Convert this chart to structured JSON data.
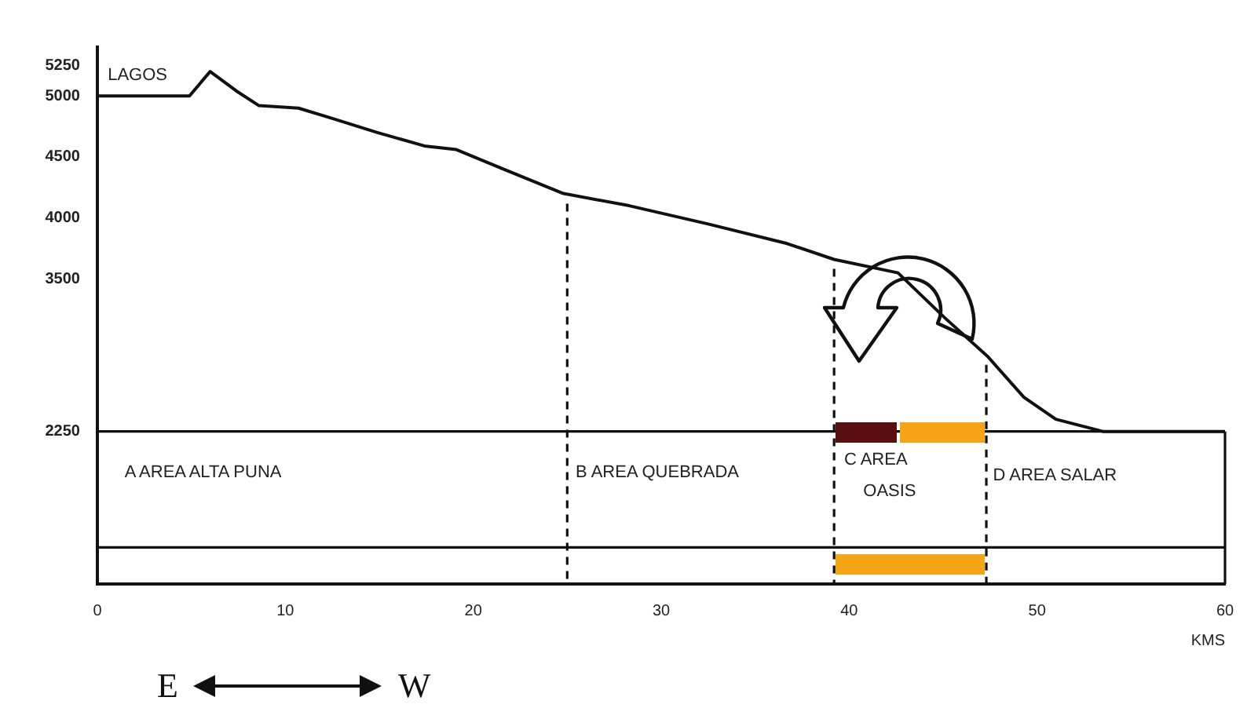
{
  "chart_data": {
    "type": "line",
    "xlabel": "KMS",
    "series": [
      {
        "color": "#111111",
        "x": [
          0,
          4.9,
          6.0,
          7.4,
          8.6,
          10.7,
          12.4,
          14.9,
          17.4,
          19.1,
          21.6,
          24.8,
          28.3,
          32.5,
          36.7,
          39.2,
          42.6,
          45.1,
          47.4,
          49.3,
          51.0,
          53.5,
          60
        ],
        "values": [
          5000,
          5000,
          5200,
          5040,
          4920,
          4900,
          4820,
          4700,
          4590,
          4560,
          4400,
          4200,
          4100,
          3950,
          3790,
          3660,
          3550,
          3180,
          2860,
          2530,
          2350,
          2250,
          2250
        ]
      }
    ],
    "xlim": [
      0,
      60
    ],
    "xticks": [
      0,
      10,
      20,
      30,
      40,
      50,
      60
    ],
    "ylim": [
      1000,
      5400
    ],
    "yticks": [
      2250,
      3500,
      4000,
      4500,
      5000,
      5250
    ],
    "grid": false,
    "legend": false,
    "marker": "none",
    "line_style": "solid",
    "ref_lines": [
      {
        "axis": "y",
        "value": 2250
      },
      {
        "axis": "y",
        "value": 1300
      },
      {
        "axis": "x",
        "value": 60
      },
      {
        "axis": "x",
        "value": 25,
        "line_style": "dashed"
      },
      {
        "axis": "x",
        "value": 39.2,
        "line_style": "dashed"
      },
      {
        "axis": "x",
        "value": 47.3,
        "line_style": "dashed"
      }
    ],
    "annotations": [
      "LAGOS",
      "A   AREA ALTA PUNA",
      "B  AREA QUEBRADA",
      "C AREA",
      "OASIS",
      "D AREA SALAR",
      "E",
      "W"
    ]
  }
}
